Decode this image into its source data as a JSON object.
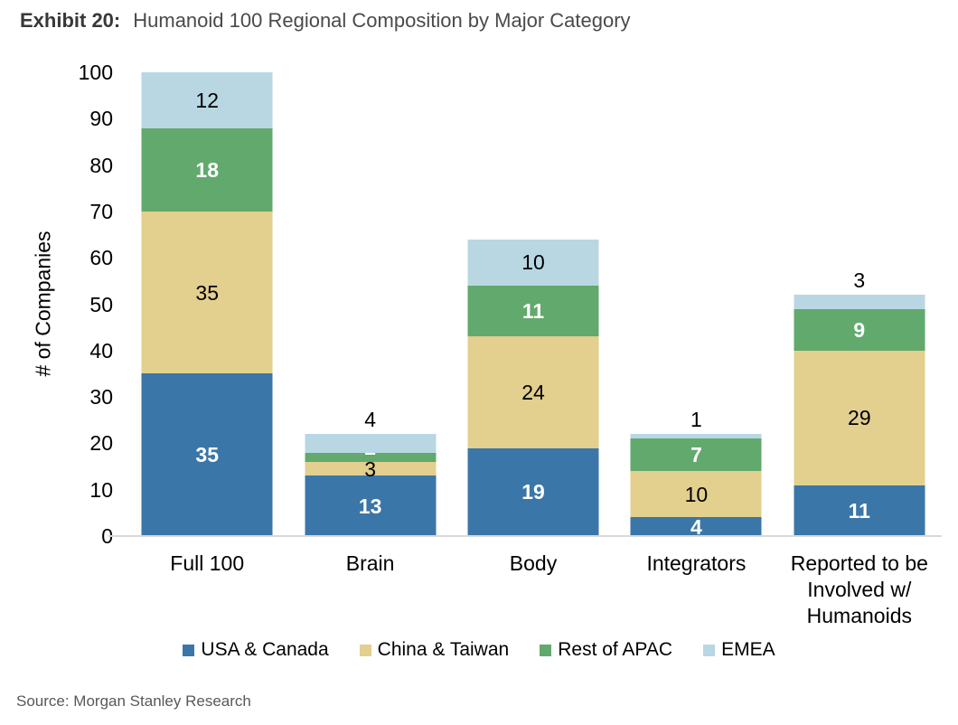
{
  "header": {
    "exhibit_label": "Exhibit 20:",
    "title": "Humanoid 100 Regional Composition by Major Category"
  },
  "footer": {
    "source": "Source: Morgan Stanley Research"
  },
  "chart_data": {
    "type": "bar",
    "stacked": true,
    "title": "Humanoid 100 Regional Composition by Major Category",
    "xlabel": "",
    "ylabel": "# of Companies",
    "ylim": [
      0,
      100
    ],
    "yticks": [
      0,
      10,
      20,
      30,
      40,
      50,
      60,
      70,
      80,
      90,
      100
    ],
    "grid": false,
    "legend_position": "bottom",
    "categories": [
      "Full 100",
      "Brain",
      "Body",
      "Integrators",
      "Reported to be Involved w/ Humanoids"
    ],
    "series": [
      {
        "name": "USA & Canada",
        "color": "#3B76A8",
        "label_color": "#FFFFFF",
        "label_bold": true,
        "values": [
          35,
          13,
          19,
          4,
          11
        ]
      },
      {
        "name": "China & Taiwan",
        "color": "#E3CF8E",
        "label_color": "#000000",
        "label_bold": false,
        "values": [
          35,
          3,
          24,
          10,
          29
        ]
      },
      {
        "name": "Rest of APAC",
        "color": "#62A96D",
        "label_color": "#FFFFFF",
        "label_bold": true,
        "values": [
          18,
          2,
          11,
          7,
          9
        ]
      },
      {
        "name": "EMEA",
        "color": "#B9D7E3",
        "label_color": "#000000",
        "label_bold": false,
        "values": [
          12,
          4,
          10,
          1,
          3
        ]
      }
    ],
    "totals": [
      100,
      22,
      64,
      22,
      52
    ],
    "baseline_color": "#D9D9D9"
  }
}
